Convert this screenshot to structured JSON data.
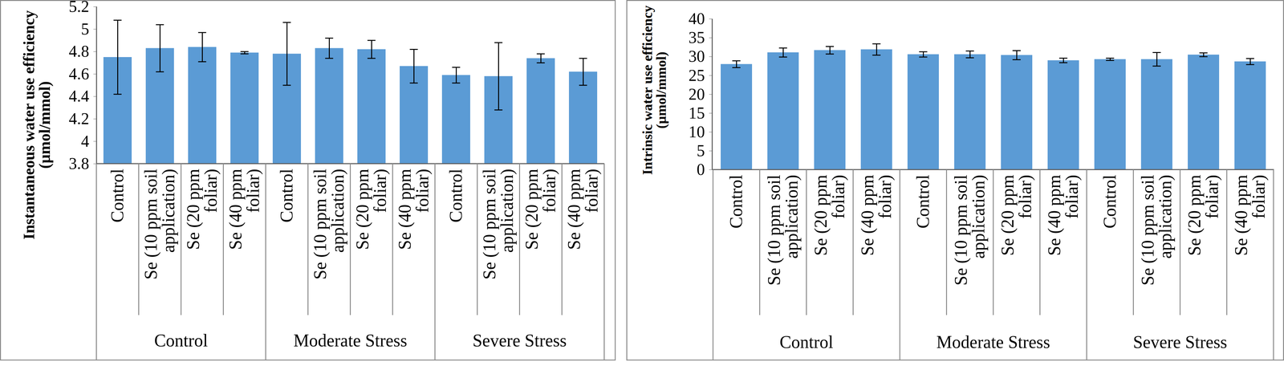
{
  "chart_data": [
    {
      "type": "bar",
      "ylabel": "Instantaneous water use efficiency (µmol/mmol)",
      "categories": [
        "Control",
        "Se (10 ppm soil application)",
        "Se (20 ppm foliar)",
        "Se (40 ppm foliar)",
        "Control",
        "Se (10 ppm soil application)",
        "Se (20 ppm foliar)",
        "Se (40 ppm foliar)",
        "Control",
        "Se (10 ppm soil application)",
        "Se (20 ppm foliar)",
        "Se (40 ppm foliar)"
      ],
      "category_groups": [
        "Control",
        "Control",
        "Control",
        "Control",
        "Moderate Stress",
        "Moderate Stress",
        "Moderate Stress",
        "Moderate Stress",
        "Severe Stress",
        "Severe Stress",
        "Severe Stress",
        "Severe Stress"
      ],
      "values": [
        4.75,
        4.83,
        4.84,
        4.79,
        4.78,
        4.83,
        4.82,
        4.67,
        4.59,
        4.58,
        4.74,
        4.62
      ],
      "errors": [
        0.33,
        0.21,
        0.13,
        0.01,
        0.28,
        0.09,
        0.08,
        0.15,
        0.07,
        0.3,
        0.04,
        0.12
      ],
      "color": "#5b9bd5",
      "ylim": [
        3.8,
        5.2
      ],
      "yticks": [
        3.8,
        4,
        4.2,
        4.4,
        4.6,
        4.8,
        5,
        5.2
      ],
      "grid": false
    },
    {
      "type": "bar",
      "ylabel": "Intrinsic water use efficiency (µmol/mmol)",
      "categories": [
        "Control",
        "Se (10 ppm soil application)",
        "Se (20 ppm foliar)",
        "Se (40 ppm foliar)",
        "Control",
        "Se (10 ppm soil application)",
        "Se (20 ppm foliar)",
        "Se (40 ppm foliar)",
        "Control",
        "Se (10 ppm soil application)",
        "Se (20 ppm foliar)",
        "Se (40 ppm foliar)"
      ],
      "category_groups": [
        "Control",
        "Control",
        "Control",
        "Control",
        "Moderate Stress",
        "Moderate Stress",
        "Moderate Stress",
        "Moderate Stress",
        "Severe Stress",
        "Severe Stress",
        "Severe Stress",
        "Severe Stress"
      ],
      "values": [
        28.0,
        31.1,
        31.7,
        31.9,
        30.6,
        30.6,
        30.4,
        29.0,
        29.3,
        29.3,
        30.5,
        28.7
      ],
      "errors": [
        0.9,
        1.2,
        1.0,
        1.5,
        0.7,
        0.9,
        1.2,
        0.6,
        0.3,
        1.8,
        0.5,
        0.8
      ],
      "color": "#5b9bd5",
      "ylim": [
        0,
        40
      ],
      "yticks": [
        0,
        5,
        10,
        15,
        20,
        25,
        30,
        35,
        40
      ],
      "grid": false
    }
  ]
}
